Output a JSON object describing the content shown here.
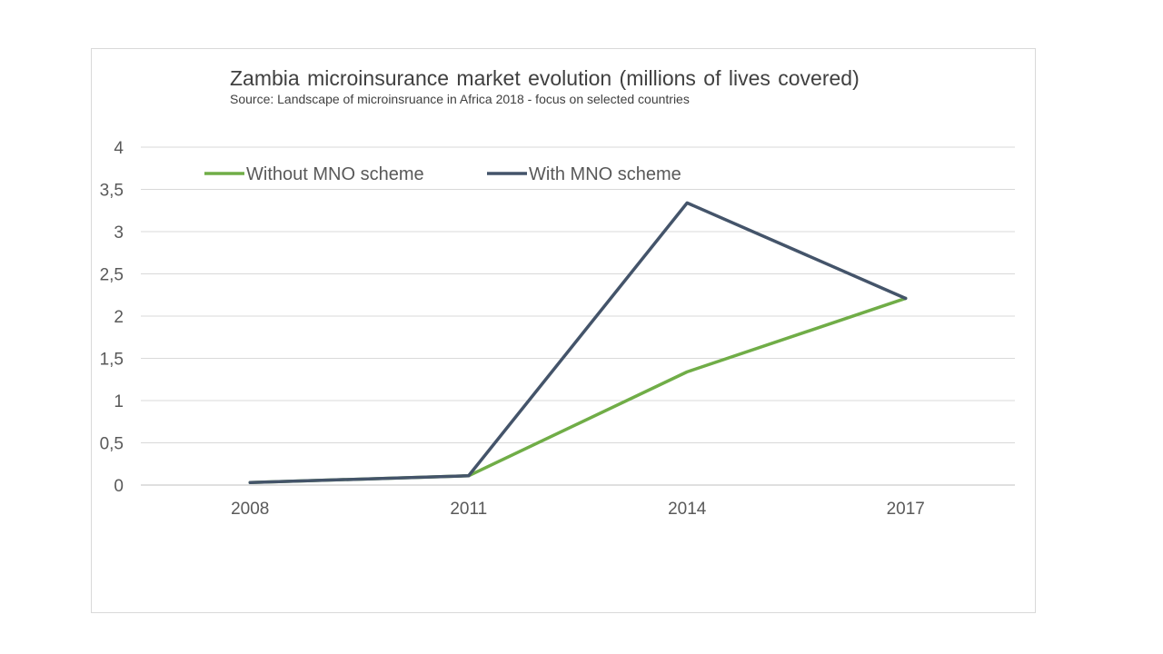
{
  "chart_data": {
    "type": "line",
    "title": "Zambia microinsurance  market evolution  (millions of lives covered)",
    "subtitle": "Source: Landscape of microinsruance in Africa 2018 - focus on selected countries",
    "categories": [
      "2008",
      "2011",
      "2014",
      "2017"
    ],
    "series": [
      {
        "name": "Without MNO scheme",
        "color": "#70ad47",
        "values": [
          0.03,
          0.11,
          1.34,
          2.21
        ]
      },
      {
        "name": "With MNO scheme",
        "color": "#44546a",
        "values": [
          0.03,
          0.11,
          3.34,
          2.21
        ]
      }
    ],
    "ylim": [
      0,
      4
    ],
    "yticks": [
      "0",
      "0,5",
      "1",
      "1,5",
      "2",
      "2,5",
      "3",
      "3,5",
      "4"
    ],
    "xlabel": "",
    "ylabel": "",
    "grid": true,
    "legend_position": "top-left"
  }
}
